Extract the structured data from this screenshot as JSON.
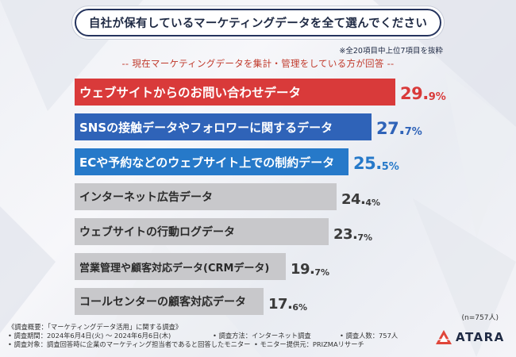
{
  "question": "自社が保有しているマーケティングデータを全て選んでください",
  "note": "※全20項目中上位7項目を抜粋",
  "subtitle": "-- 現在マーケティングデータを集計・管理をしている方が回答 --",
  "sample_size": "(n=757人)",
  "colors": {
    "red": "#d93a3a",
    "blue": "#2f63b8",
    "blue2": "#2679c9",
    "gray": "#c8c8cb",
    "navy": "#1f2a44"
  },
  "chart_data": {
    "type": "bar",
    "orientation": "horizontal",
    "title": "自社が保有しているマーケティングデータを全て選んでください",
    "unit": "%",
    "xlim": [
      0,
      29.9
    ],
    "categories": [
      "ウェブサイトからのお問い合わせデータ",
      "SNSの接触データやフォロワーに関するデータ",
      "ECや予約などのウェブサイト上での制約データ",
      "インターネット広告データ",
      "ウェブサイトの行動ログデータ",
      "営業管理や顧客対応データ(CRMデータ)",
      "コールセンターの顧客対応データ"
    ],
    "values": [
      29.9,
      27.7,
      25.5,
      24.4,
      23.7,
      19.7,
      17.6
    ],
    "value_labels": [
      {
        "int": "29.",
        "dec": "9%"
      },
      {
        "int": "27.",
        "dec": "7%"
      },
      {
        "int": "25.",
        "dec": "5%"
      },
      {
        "int": "24.",
        "dec": "4%"
      },
      {
        "int": "23.",
        "dec": "7%"
      },
      {
        "int": "19.",
        "dec": "7%"
      },
      {
        "int": "17.",
        "dec": "6%"
      }
    ],
    "bar_styles": [
      "red",
      "blue",
      "blue2",
      "gray",
      "gray",
      "gray",
      "gray"
    ]
  },
  "footer": {
    "summary": "《調査概要：「マーケティングデータ活用」に関する調査》",
    "period": "• 調査期間：2024年6月4日(火) ～ 2024年6月6日(木)",
    "method": "• 調査方法：インターネット調査",
    "respondents": "• 調査人数：757人",
    "target": "• 調査対象：調査回答時に企業のマーケティング担当者であると回答したモニター",
    "provider": "• モニター提供元：PRIZMAリサーチ"
  },
  "logo": {
    "text": "ATARA",
    "icon": "atara-logo-icon"
  }
}
